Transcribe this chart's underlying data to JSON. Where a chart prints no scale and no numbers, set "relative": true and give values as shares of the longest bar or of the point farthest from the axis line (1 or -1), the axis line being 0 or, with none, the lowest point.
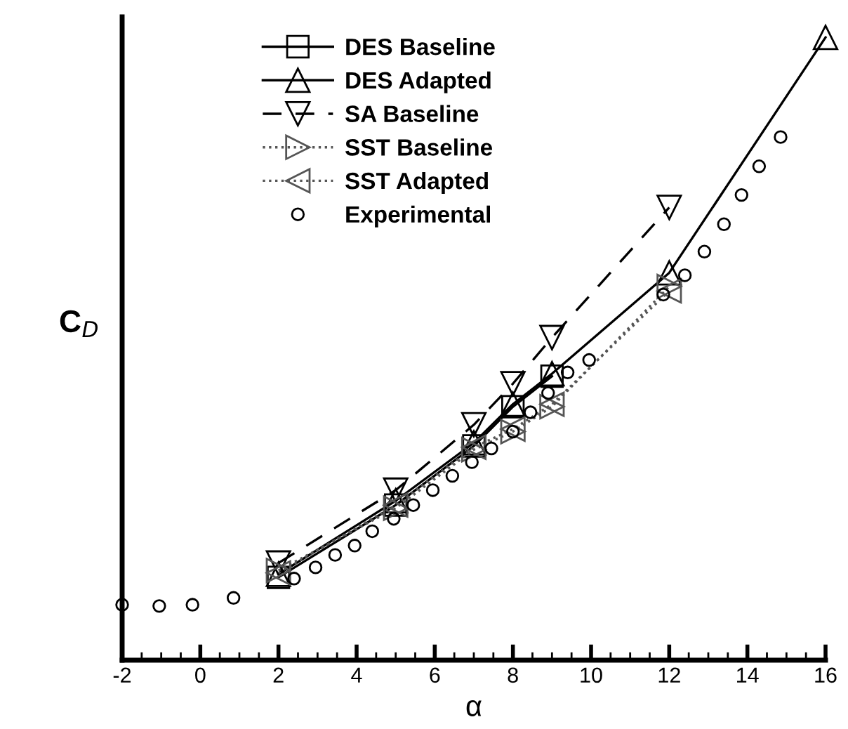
{
  "chart_data": {
    "type": "line",
    "relative": true,
    "xlabel": "α",
    "ylabel": "C$_{D}$",
    "xlim": [
      -2,
      16
    ],
    "xticks": [
      -2,
      0,
      2,
      4,
      6,
      8,
      10,
      12,
      14,
      16
    ],
    "legend": "top left",
    "grid": false,
    "series": [
      {
        "name": "DES Baseline",
        "color": "#000000",
        "marker": "square",
        "line_style": "solid",
        "x": [
          2,
          5,
          7,
          8,
          9
        ],
        "values": [
          0.133,
          0.249,
          0.344,
          0.407,
          0.456
        ]
      },
      {
        "name": "DES Adapted",
        "color": "#000000",
        "marker": "triangle",
        "line_style": "solid",
        "x": [
          2,
          5,
          7,
          8,
          9,
          12,
          16
        ],
        "values": [
          0.138,
          0.256,
          0.349,
          0.411,
          0.46,
          0.622,
          1
        ]
      },
      {
        "name": "SA Baseline",
        "color": "#000000",
        "marker": "triangle_down",
        "line_style": "dashed",
        "x": [
          2,
          5,
          7,
          8,
          9,
          12
        ],
        "values": [
          0.156,
          0.273,
          0.378,
          0.444,
          0.518,
          0.727
        ]
      },
      {
        "name": "SST Baseline",
        "color": "#555555",
        "marker": "triangle_right",
        "line_style": "dotted",
        "x": [
          2,
          5,
          7,
          8,
          9,
          12
        ],
        "values": [
          0.144,
          0.244,
          0.338,
          0.367,
          0.407,
          0.6
        ]
      },
      {
        "name": "SST Adapted",
        "color": "#555555",
        "marker": "triangle_left",
        "line_style": "dotted",
        "x": [
          2,
          5,
          7,
          8,
          9,
          12
        ],
        "values": [
          0.14,
          0.249,
          0.342,
          0.371,
          0.411,
          0.593
        ]
      },
      {
        "name": "Experimental",
        "type": "scatter",
        "color": "#000000",
        "marker": "circle",
        "x": [
          -2.0,
          -1.05,
          -0.2,
          0.85,
          2.4,
          2.95,
          3.45,
          3.95,
          4.4,
          4.95,
          5.45,
          5.95,
          6.45,
          6.95,
          7.45,
          8.0,
          8.45,
          8.9,
          9.4,
          9.95,
          11.85,
          12.4,
          12.9,
          13.4,
          13.85,
          14.3,
          14.85
        ],
        "values": [
          0.089,
          0.087,
          0.089,
          0.1,
          0.131,
          0.149,
          0.169,
          0.184,
          0.207,
          0.227,
          0.249,
          0.273,
          0.296,
          0.318,
          0.34,
          0.367,
          0.398,
          0.429,
          0.462,
          0.482,
          0.587,
          0.618,
          0.656,
          0.7,
          0.747,
          0.793,
          0.84
        ]
      }
    ]
  }
}
